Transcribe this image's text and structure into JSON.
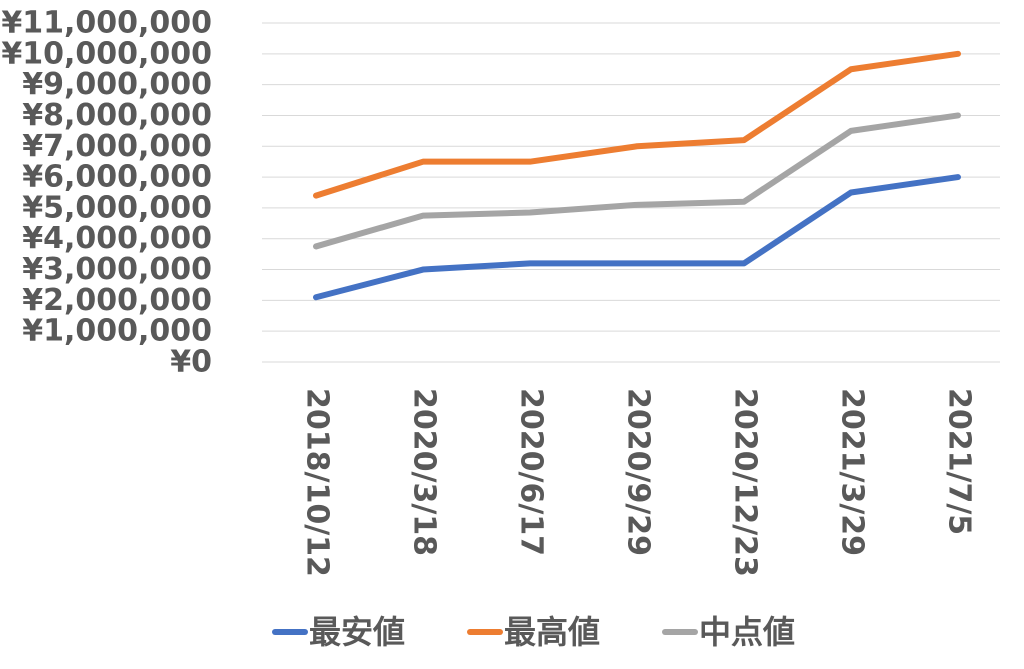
{
  "chart_data": {
    "type": "line",
    "title": "",
    "xlabel": "",
    "ylabel": "",
    "categories": [
      "2018/10/12",
      "2020/3/18",
      "2020/6/17",
      "2020/9/29",
      "2020/12/23",
      "2021/3/29",
      "2021/7/5"
    ],
    "ylim": [
      0,
      11000000
    ],
    "ytick_values": [
      0,
      1000000,
      2000000,
      3000000,
      4000000,
      5000000,
      6000000,
      7000000,
      8000000,
      9000000,
      10000000,
      11000000
    ],
    "ytick_labels": [
      "¥0",
      "¥1,000,000",
      "¥2,000,000",
      "¥3,000,000",
      "¥4,000,000",
      "¥5,000,000",
      "¥6,000,000",
      "¥7,000,000",
      "¥8,000,000",
      "¥9,000,000",
      "¥10,000,000",
      "¥11,000,000"
    ],
    "grid": true,
    "legend_position": "bottom",
    "series": [
      {
        "name": "最安値",
        "color": "#4472C4",
        "values": [
          2100000,
          3000000,
          3200000,
          3200000,
          3200000,
          5500000,
          6000000
        ]
      },
      {
        "name": "最高値",
        "color": "#ED7D31",
        "values": [
          5400000,
          6500000,
          6500000,
          7000000,
          7200000,
          9500000,
          10000000
        ]
      },
      {
        "name": "中点値",
        "color": "#A5A5A5",
        "values": [
          3750000,
          4750000,
          4850000,
          5100000,
          5200000,
          7500000,
          8000000
        ]
      }
    ]
  }
}
